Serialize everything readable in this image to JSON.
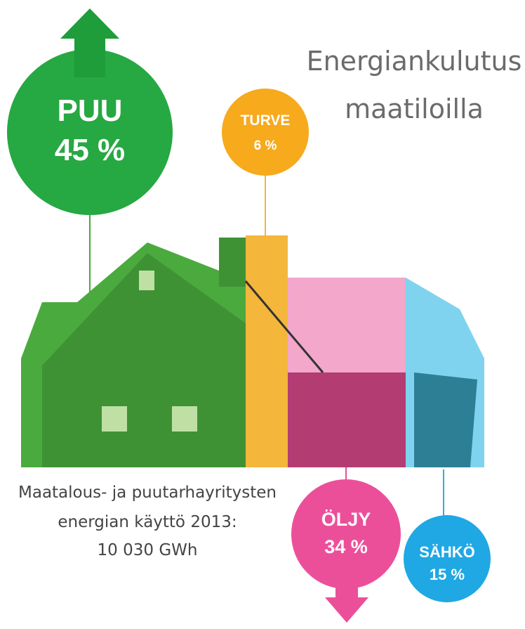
{
  "title": [
    "Energiankulutus",
    "maatiloilla"
  ],
  "caption": [
    "Maatalous- ja puutarhayritysten",
    "energian käyttö 2013:",
    "10 030 GWh"
  ],
  "items": [
    {
      "label": "PUU",
      "share": "45 %"
    },
    {
      "label": "TURVE",
      "share": "6 %"
    },
    {
      "label": "ÖLJY",
      "share": "34 %"
    },
    {
      "label": "SÄHKÖ",
      "share": "15 %"
    }
  ]
}
